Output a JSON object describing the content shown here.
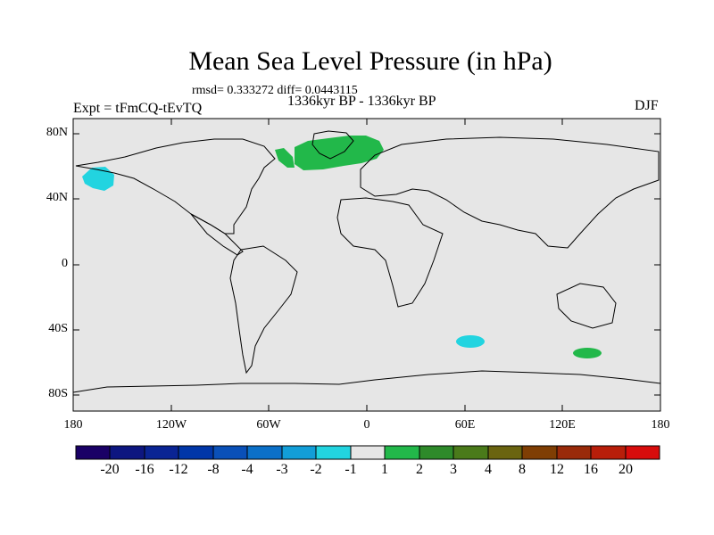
{
  "title": "Mean Sea Level Pressure (in hPa)",
  "stats_line": "rmsd= 0.333272 diff= 0.0443115",
  "period": "1336kyr BP - 1336kyr BP",
  "experiment": "Expt = tFmCQ-tEvTQ",
  "season": "DJF",
  "lat_labels": [
    "80N",
    "40N",
    "0",
    "40S",
    "80S"
  ],
  "lon_labels": [
    "180",
    "120W",
    "60W",
    "0",
    "60E",
    "120E",
    "180"
  ],
  "colorbar": {
    "labels": [
      "-20",
      "-16",
      "-12",
      "-8",
      "-4",
      "-3",
      "-2",
      "-1",
      "1",
      "2",
      "3",
      "4",
      "8",
      "12",
      "16",
      "20"
    ],
    "colors": [
      "#1a0066",
      "#0d1680",
      "#0a2494",
      "#0036a8",
      "#0a50b8",
      "#0b70c8",
      "#129ed8",
      "#22d4e0",
      "#e6e6e6",
      "#22b84a",
      "#2e8a2a",
      "#4a7a1a",
      "#6a6410",
      "#7f3e04",
      "#992a0a",
      "#b81e0a",
      "#d80c0c"
    ]
  },
  "colors": {
    "ocean": "#e6e6e6",
    "positive": "#22b84a",
    "negative": "#22d4e0"
  }
}
